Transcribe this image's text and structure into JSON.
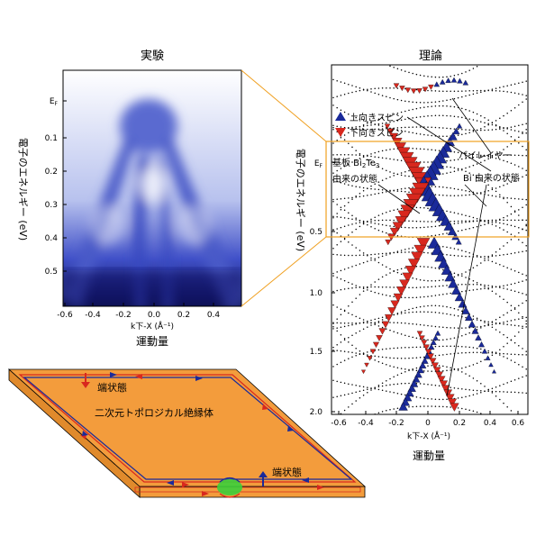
{
  "experiment": {
    "title": "実験",
    "y_axis_label": "電子のエネルギー (eV)",
    "y_ticks": [
      "E_F",
      "0.1",
      "0.2",
      "0.3",
      "0.4",
      "0.5"
    ],
    "x_ticks": [
      "-0.6",
      "-0.4",
      "-0.2",
      "0.0",
      "0.2",
      "0.4"
    ],
    "x_axis_label": "k下-X (Å⁻¹)",
    "x_caption": "運動量"
  },
  "theory": {
    "title": "理論",
    "y_axis_label": "電子のエネルギー (eV)",
    "y_ticks": [
      "E_F",
      "0.5",
      "1.0",
      "1.5",
      "2.0"
    ],
    "x_ticks": [
      "-0.6",
      "-0.4",
      "-0.2",
      "0",
      "0.2",
      "0.4",
      "0.6"
    ],
    "x_axis_label": "k下-X (Å⁻¹)",
    "x_caption": "運動量",
    "legend": {
      "spin_up": "上向きスピン",
      "spin_down": "下向きスピン"
    },
    "annotations": {
      "substrate_line1": "基板 Bi2Te3",
      "substrate_line2": "由来の状態",
      "bilayer_line1": "バイレイヤー",
      "bilayer_line2": "Bi 由来の状態"
    }
  },
  "insulator": {
    "center_label": "二次元トポロジカル絶縁体",
    "edge_label_top": "端状態",
    "edge_label_bottom": "端状態"
  },
  "colors": {
    "spin_up": "#1a2a9a",
    "spin_down": "#d8281e",
    "highlight_box": "#f0a020",
    "insulator_fill": "#f39c3c",
    "insulator_edge": "#8b4513"
  }
}
